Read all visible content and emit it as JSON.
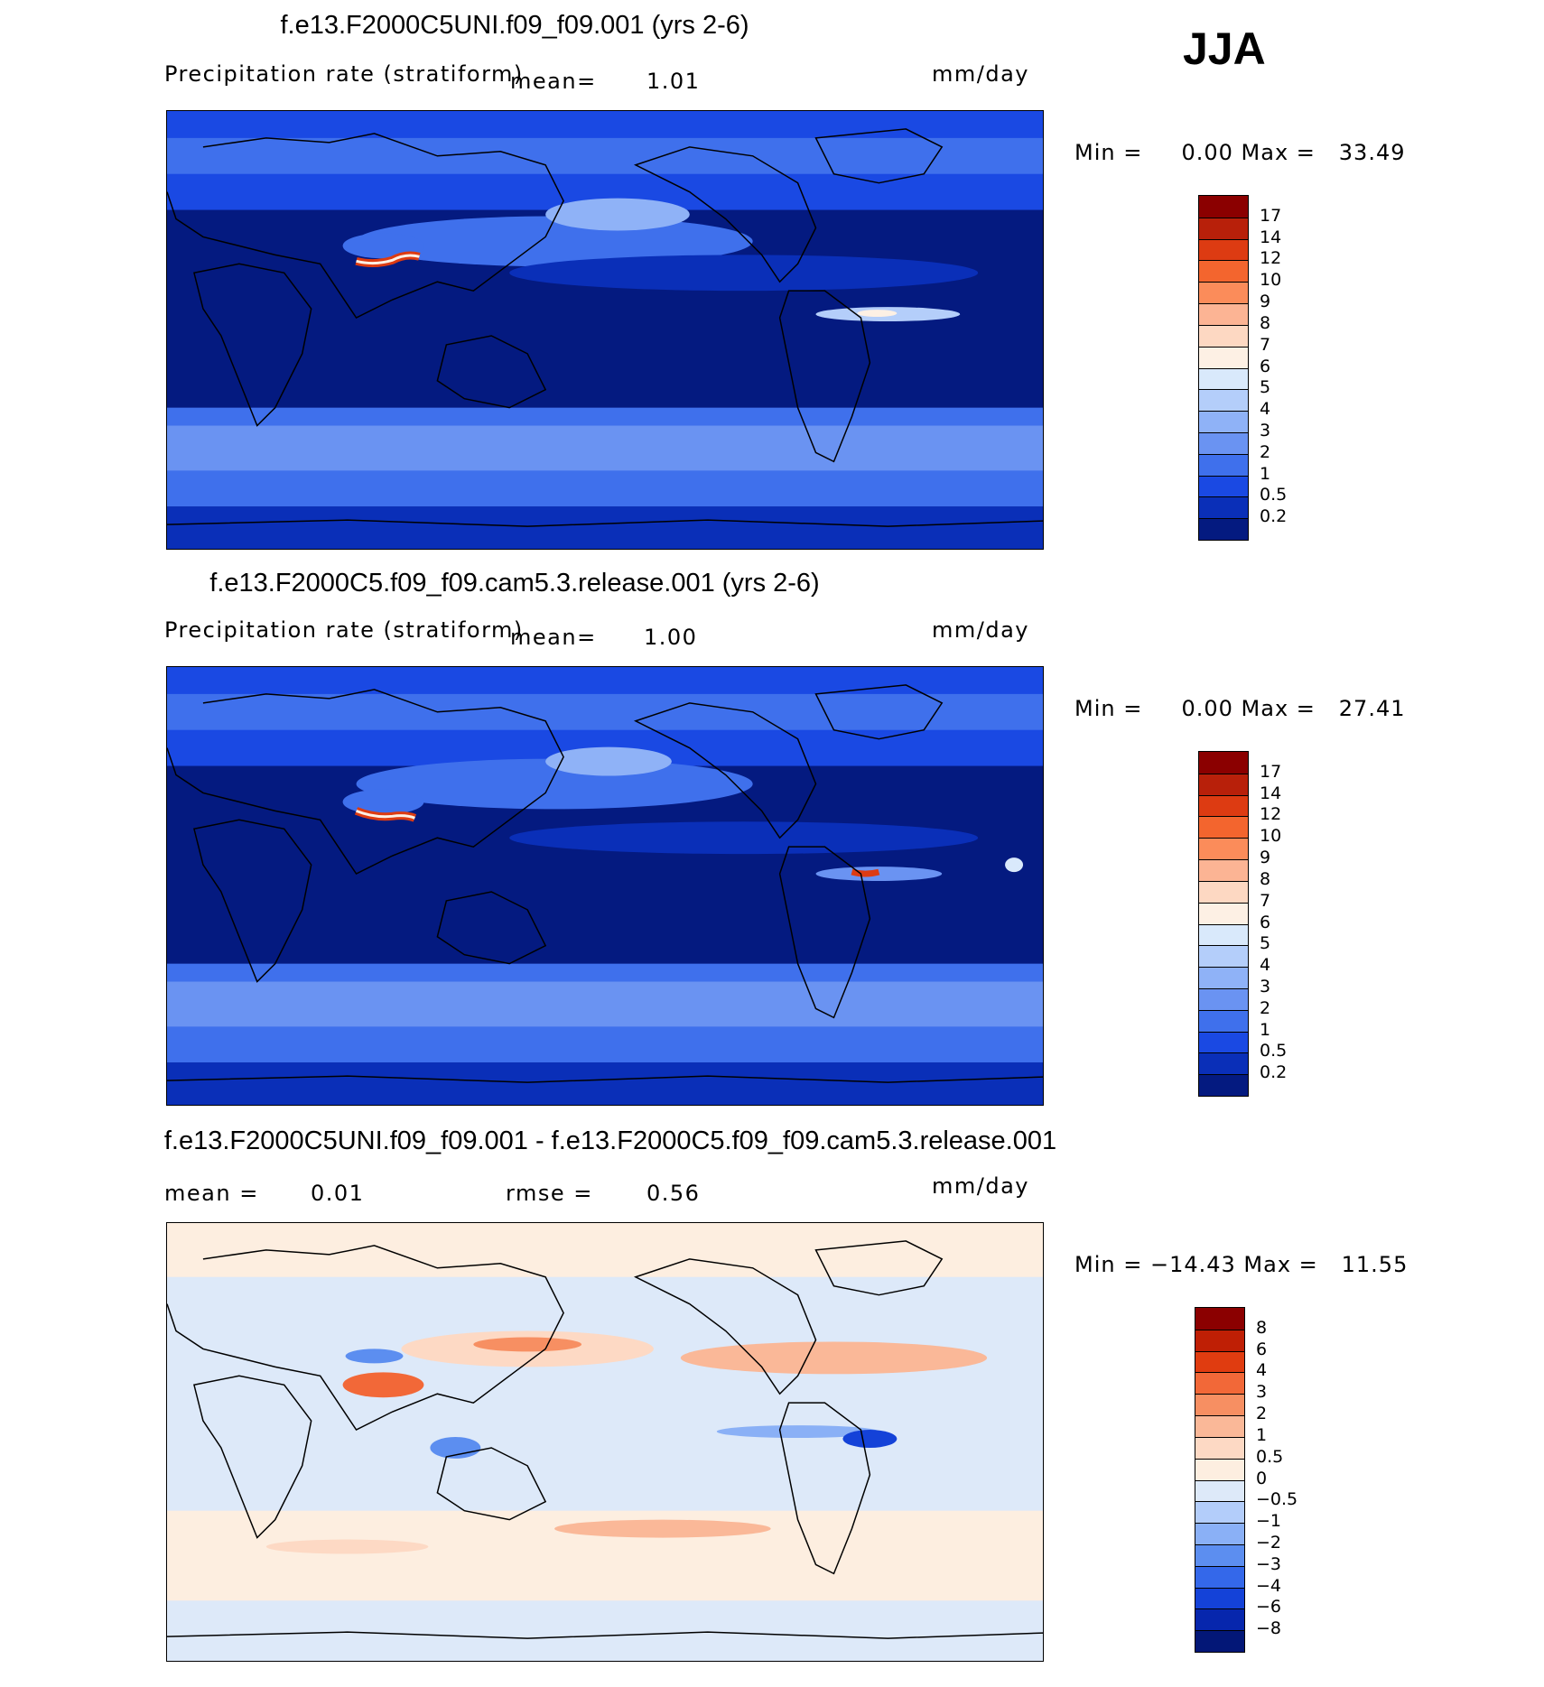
{
  "season": "JJA",
  "panels": [
    {
      "title": "f.e13.F2000C5UNI.f09_f09.001 (yrs 2-6)",
      "variable": "Precipitation rate (stratiform)",
      "mean_label": "mean=",
      "mean_value": "1.01",
      "units": "mm/day",
      "minmax": "Min =     0.00 Max =   33.49",
      "colorbar": {
        "labels": [
          "17",
          "14",
          "12",
          "10",
          "9",
          "8",
          "7",
          "6",
          "5",
          "4",
          "3",
          "2",
          "1",
          "0.5",
          "0.2"
        ],
        "colors": [
          "#8b0000",
          "#b8200a",
          "#dd3b12",
          "#f3652e",
          "#fb8c5a",
          "#fcb494",
          "#fdd8c2",
          "#fdf0e4",
          "#d9e9fb",
          "#b4cefa",
          "#8fb2f7",
          "#6a93f2",
          "#3f70ec",
          "#1a49e3",
          "#0a2fb8",
          "#041a80"
        ]
      }
    },
    {
      "title": "f.e13.F2000C5.f09_f09.cam5.3.release.001 (yrs 2-6)",
      "variable": "Precipitation rate (stratiform)",
      "mean_label": "mean=",
      "mean_value": "1.00",
      "units": "mm/day",
      "minmax": "Min =     0.00 Max =   27.41",
      "colorbar": {
        "labels": [
          "17",
          "14",
          "12",
          "10",
          "9",
          "8",
          "7",
          "6",
          "5",
          "4",
          "3",
          "2",
          "1",
          "0.5",
          "0.2"
        ],
        "colors": [
          "#8b0000",
          "#b8200a",
          "#dd3b12",
          "#f3652e",
          "#fb8c5a",
          "#fcb494",
          "#fdd8c2",
          "#fdf0e4",
          "#d9e9fb",
          "#b4cefa",
          "#8fb2f7",
          "#6a93f2",
          "#3f70ec",
          "#1a49e3",
          "#0a2fb8",
          "#041a80"
        ]
      }
    },
    {
      "title": "f.e13.F2000C5UNI.f09_f09.001 - f.e13.F2000C5.f09_f09.cam5.3.release.001",
      "mean_label": "mean =",
      "mean_value": "0.01",
      "rmse_label": "rmse =",
      "rmse_value": "0.56",
      "units": "mm/day",
      "minmax": "Min = −14.43 Max =   11.55",
      "colorbar": {
        "labels": [
          "8",
          "6",
          "4",
          "3",
          "2",
          "1",
          "0.5",
          "0",
          "−0.5",
          "−1",
          "−2",
          "−3",
          "−4",
          "−6",
          "−8"
        ],
        "colors": [
          "#8b0000",
          "#bf1f05",
          "#e03c10",
          "#f26838",
          "#f78f62",
          "#fab898",
          "#fdd9c4",
          "#fdeee0",
          "#dde9f9",
          "#b3cdfa",
          "#8ab0f6",
          "#5c8ef0",
          "#3468ea",
          "#1442d8",
          "#0626ad",
          "#031777"
        ]
      }
    }
  ]
}
